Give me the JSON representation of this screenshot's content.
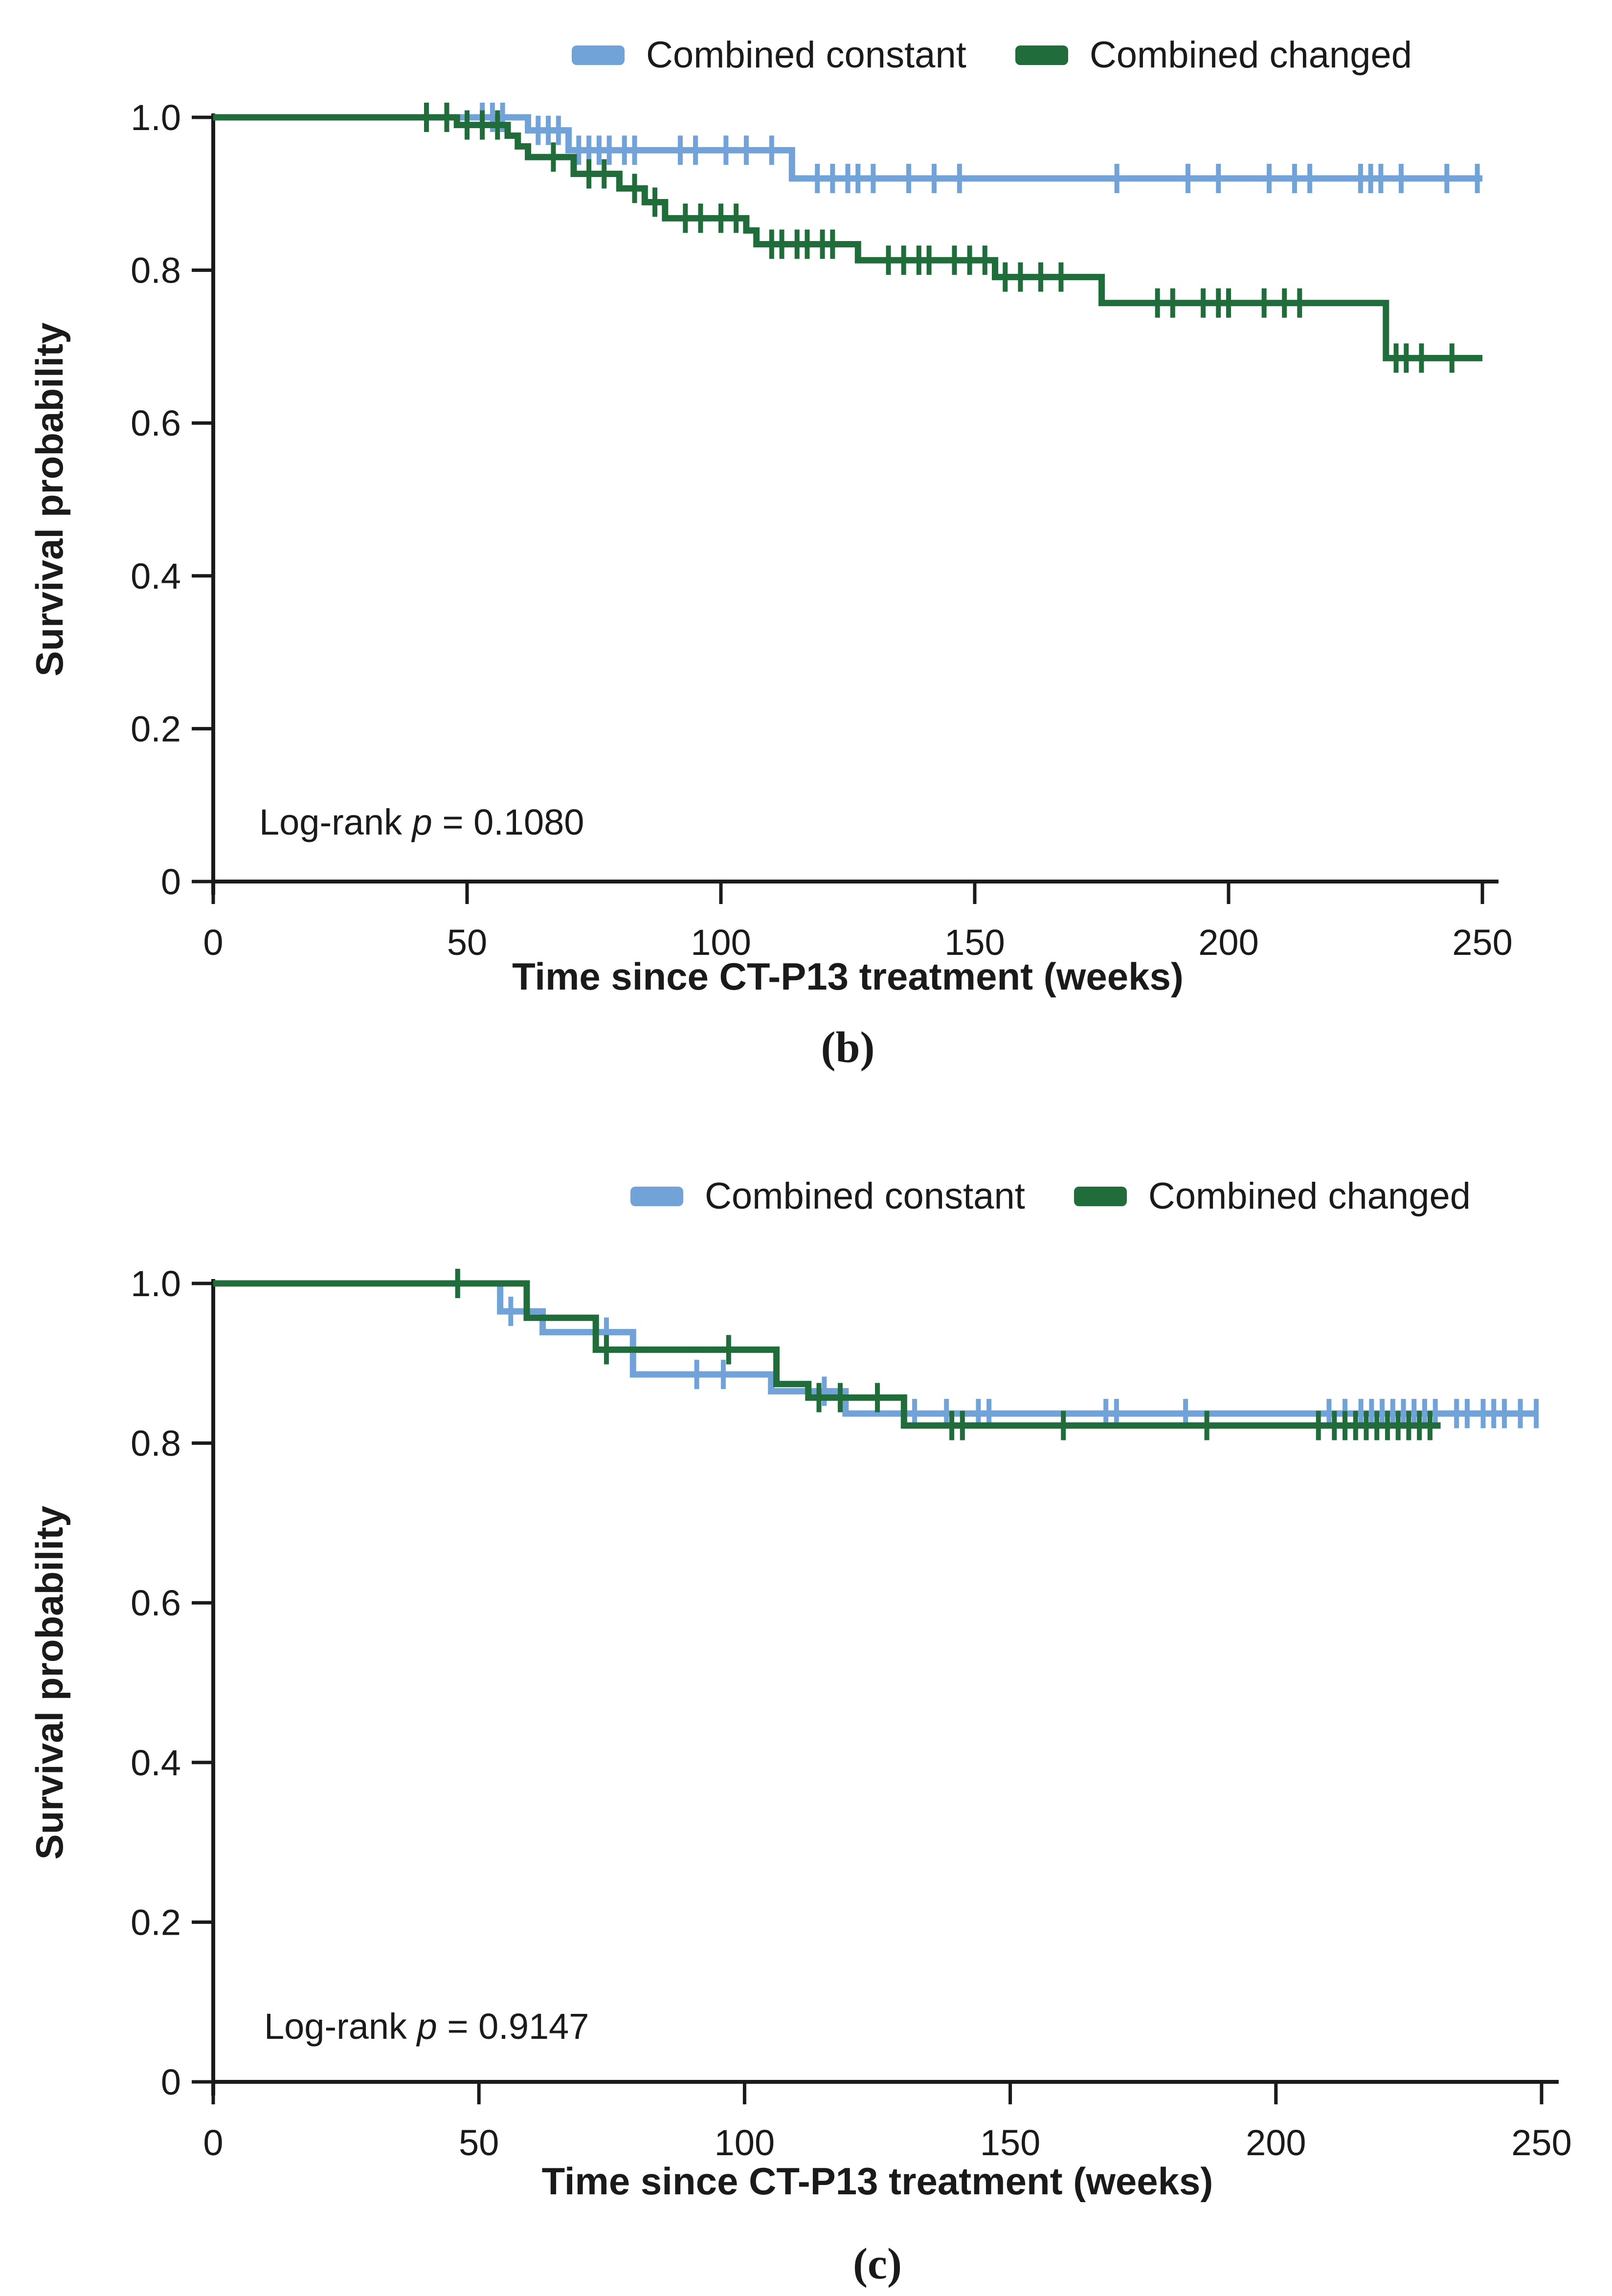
{
  "page": {
    "background": "#ffffff",
    "text_color": "#1a1a1a"
  },
  "legend": {
    "constant_label": "Combined constant",
    "changed_label": "Combined changed",
    "constant_color": "#72A3D8",
    "changed_color": "#206C3A"
  },
  "axes": {
    "xlabel": "Time since CT-P13 treatment (weeks)",
    "ylabel": "Survival probability",
    "xtick_labels": [
      "0",
      "50",
      "100",
      "150",
      "200",
      "250"
    ],
    "xtick_values": [
      0,
      50,
      100,
      150,
      200,
      250
    ],
    "ytick_labels": [
      "1.0",
      "0.8",
      "0.6",
      "0.4",
      "0.2",
      "0"
    ],
    "ytick_values": [
      1.0,
      0.8,
      0.6,
      0.4,
      0.2,
      0
    ],
    "xlim": [
      0,
      250
    ],
    "ylim": [
      0,
      1
    ]
  },
  "panels": [
    {
      "id": "b",
      "caption": "(b)",
      "logrank": {
        "prefix": "Log-rank ",
        "italic": "p",
        "suffix": " = 0.1080"
      }
    },
    {
      "id": "c",
      "caption": "(c)",
      "logrank": {
        "prefix": "Log-rank ",
        "italic": "p",
        "suffix": " = 0.9147"
      }
    }
  ],
  "chart_data": [
    {
      "id": "b",
      "type": "line",
      "subtype": "kaplan-meier-step",
      "title": "(b)",
      "xlabel": "Time since CT-P13 treatment (weeks)",
      "ylabel": "Survival probability",
      "xlim": [
        0,
        250
      ],
      "ylim": [
        0,
        1
      ],
      "grid": false,
      "legend_position": "top-center",
      "annotation": "Log-rank p = 0.1080",
      "series": [
        {
          "name": "Combined constant",
          "color": "#72A3D8",
          "end": 250,
          "steps": [
            [
              0,
              1.0
            ],
            [
              62,
              0.983
            ],
            [
              70,
              0.957
            ],
            [
              114,
              0.92
            ]
          ],
          "censors": [
            [
              53,
              1.0
            ],
            [
              55,
              1.0
            ],
            [
              57,
              1.0
            ],
            [
              64,
              0.983
            ],
            [
              66,
              0.983
            ],
            [
              68,
              0.983
            ],
            [
              72,
              0.957
            ],
            [
              74,
              0.957
            ],
            [
              76,
              0.957
            ],
            [
              78,
              0.957
            ],
            [
              81,
              0.957
            ],
            [
              83,
              0.957
            ],
            [
              92,
              0.957
            ],
            [
              95,
              0.957
            ],
            [
              101,
              0.957
            ],
            [
              105,
              0.957
            ],
            [
              110,
              0.957
            ],
            [
              119,
              0.92
            ],
            [
              122,
              0.92
            ],
            [
              125,
              0.92
            ],
            [
              127,
              0.92
            ],
            [
              130,
              0.92
            ],
            [
              137,
              0.92
            ],
            [
              142,
              0.92
            ],
            [
              147,
              0.92
            ],
            [
              178,
              0.92
            ],
            [
              192,
              0.92
            ],
            [
              198,
              0.92
            ],
            [
              208,
              0.92
            ],
            [
              213,
              0.92
            ],
            [
              216,
              0.92
            ],
            [
              226,
              0.92
            ],
            [
              228,
              0.92
            ],
            [
              230,
              0.92
            ],
            [
              234,
              0.92
            ],
            [
              243,
              0.92
            ],
            [
              249,
              0.92
            ]
          ]
        },
        {
          "name": "Combined changed",
          "color": "#206C3A",
          "end": 250,
          "steps": [
            [
              0,
              1.0
            ],
            [
              48,
              0.99
            ],
            [
              58,
              0.976
            ],
            [
              60,
              0.962
            ],
            [
              62,
              0.948
            ],
            [
              71,
              0.926
            ],
            [
              80,
              0.907
            ],
            [
              85,
              0.889
            ],
            [
              89,
              0.868
            ],
            [
              105,
              0.852
            ],
            [
              107,
              0.834
            ],
            [
              127,
              0.813
            ],
            [
              154,
              0.791
            ],
            [
              175,
              0.757
            ],
            [
              231,
              0.685
            ]
          ],
          "censors": [
            [
              42,
              1.0
            ],
            [
              46,
              1.0
            ],
            [
              50,
              0.99
            ],
            [
              53,
              0.99
            ],
            [
              56,
              0.99
            ],
            [
              67,
              0.948
            ],
            [
              74,
              0.926
            ],
            [
              77,
              0.926
            ],
            [
              83,
              0.907
            ],
            [
              87,
              0.889
            ],
            [
              93,
              0.868
            ],
            [
              96,
              0.868
            ],
            [
              100,
              0.868
            ],
            [
              103,
              0.868
            ],
            [
              110,
              0.834
            ],
            [
              112,
              0.834
            ],
            [
              115,
              0.834
            ],
            [
              117,
              0.834
            ],
            [
              120,
              0.834
            ],
            [
              122,
              0.834
            ],
            [
              133,
              0.813
            ],
            [
              136,
              0.813
            ],
            [
              139,
              0.813
            ],
            [
              141,
              0.813
            ],
            [
              146,
              0.813
            ],
            [
              149,
              0.813
            ],
            [
              152,
              0.813
            ],
            [
              156,
              0.791
            ],
            [
              159,
              0.791
            ],
            [
              163,
              0.791
            ],
            [
              167,
              0.791
            ],
            [
              186,
              0.757
            ],
            [
              189,
              0.757
            ],
            [
              195,
              0.757
            ],
            [
              198,
              0.757
            ],
            [
              200,
              0.757
            ],
            [
              207,
              0.757
            ],
            [
              211,
              0.757
            ],
            [
              214,
              0.757
            ],
            [
              233,
              0.685
            ],
            [
              235,
              0.685
            ],
            [
              238,
              0.685
            ],
            [
              244,
              0.685
            ]
          ]
        }
      ]
    },
    {
      "id": "c",
      "type": "line",
      "subtype": "kaplan-meier-step",
      "title": "(c)",
      "xlabel": "Time since CT-P13 treatment (weeks)",
      "ylabel": "Survival probability",
      "xlim": [
        0,
        250
      ],
      "ylim": [
        0,
        1
      ],
      "grid": false,
      "legend_position": "top-center",
      "annotation": "Log-rank p = 0.9147",
      "series": [
        {
          "name": "Combined constant",
          "color": "#72A3D8",
          "end": 249,
          "steps": [
            [
              0,
              1.0
            ],
            [
              54,
              0.965
            ],
            [
              62,
              0.939
            ],
            [
              79,
              0.886
            ],
            [
              105,
              0.865
            ],
            [
              119,
              0.837
            ]
          ],
          "censors": [
            [
              46,
              1.0
            ],
            [
              56,
              0.965
            ],
            [
              74,
              0.939
            ],
            [
              91,
              0.886
            ],
            [
              96,
              0.886
            ],
            [
              115,
              0.865
            ],
            [
              132,
              0.837
            ],
            [
              138,
              0.837
            ],
            [
              144,
              0.837
            ],
            [
              146,
              0.837
            ],
            [
              168,
              0.837
            ],
            [
              170,
              0.837
            ],
            [
              183,
              0.837
            ],
            [
              210,
              0.837
            ],
            [
              213,
              0.837
            ],
            [
              216,
              0.837
            ],
            [
              218,
              0.837
            ],
            [
              220,
              0.837
            ],
            [
              222,
              0.837
            ],
            [
              224,
              0.837
            ],
            [
              226,
              0.837
            ],
            [
              228,
              0.837
            ],
            [
              230,
              0.837
            ],
            [
              234,
              0.837
            ],
            [
              236,
              0.837
            ],
            [
              239,
              0.837
            ],
            [
              241,
              0.837
            ],
            [
              243,
              0.837
            ],
            [
              246,
              0.837
            ],
            [
              249,
              0.837
            ]
          ]
        },
        {
          "name": "Combined changed",
          "color": "#206C3A",
          "end": 231,
          "steps": [
            [
              0,
              1.0
            ],
            [
              59,
              0.957
            ],
            [
              72,
              0.917
            ],
            [
              106,
              0.874
            ],
            [
              112,
              0.857
            ],
            [
              130,
              0.822
            ]
          ],
          "censors": [
            [
              46,
              1.0
            ],
            [
              74,
              0.917
            ],
            [
              97,
              0.917
            ],
            [
              114,
              0.857
            ],
            [
              118,
              0.857
            ],
            [
              125,
              0.857
            ],
            [
              139,
              0.822
            ],
            [
              141,
              0.822
            ],
            [
              160,
              0.822
            ],
            [
              187,
              0.822
            ],
            [
              208,
              0.822
            ],
            [
              211,
              0.822
            ],
            [
              213,
              0.822
            ],
            [
              215,
              0.822
            ],
            [
              217,
              0.822
            ],
            [
              219,
              0.822
            ],
            [
              221,
              0.822
            ],
            [
              223,
              0.822
            ],
            [
              225,
              0.822
            ],
            [
              227,
              0.822
            ],
            [
              229,
              0.822
            ]
          ]
        }
      ]
    }
  ]
}
